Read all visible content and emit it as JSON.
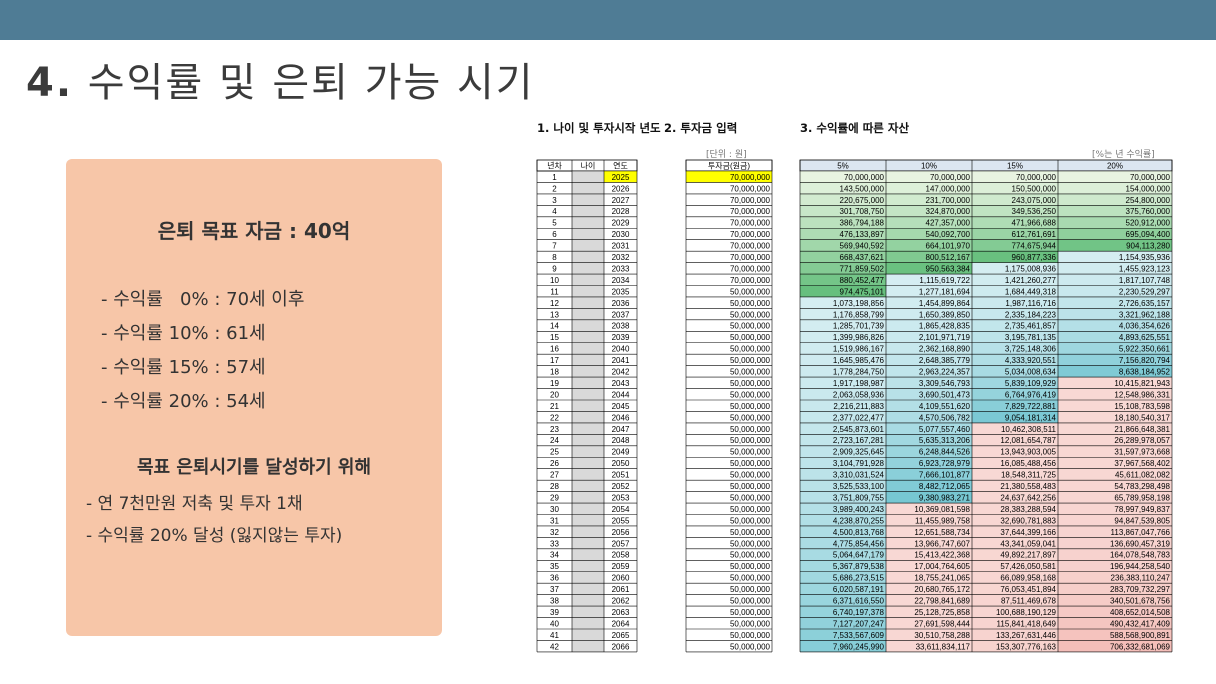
{
  "slide": {
    "title_number": "4.",
    "title_text": "수익률 및 은퇴 가능 시기"
  },
  "panel": {
    "goal": "은퇴 목표 자금 : 40억",
    "retire_items": [
      "- 수익률   0% : 70세 이후",
      "- 수익률 10% : 61세",
      "- 수익률 15% : 57세",
      "- 수익률 20% : 54세"
    ],
    "subheading": "목표 은퇴시기를 달성하기 위해",
    "actions": [
      "- 연 7천만원 저축 및 투자 1채",
      "- 수익률 20% 달성 (잃지않는 투자)"
    ]
  },
  "sheet": {
    "section1": "1. 나이 및 투자시작 년도",
    "section2": "2. 투자금 입력",
    "section3": "3. 수익률에 따른 자산",
    "unit_note": "[단위 : 원]",
    "rate_note": "[%는 년 수익률]",
    "left_headers": [
      "년차",
      "나이",
      "연도"
    ],
    "invest_header": "투자금(원금)",
    "rate_headers": [
      "5%",
      "10%",
      "15%",
      "20%"
    ],
    "colors": {
      "start_year": "#ffff00",
      "age_empty": "#d9d9d9"
    },
    "rows": [
      [
        "1",
        "2025",
        "70,000,000",
        "70,000,000",
        "70,000,000",
        "70,000,000",
        "70,000,000"
      ],
      [
        "2",
        "2026",
        "70,000,000",
        "143,500,000",
        "147,000,000",
        "150,500,000",
        "154,000,000"
      ],
      [
        "3",
        "2027",
        "70,000,000",
        "220,675,000",
        "231,700,000",
        "243,075,000",
        "254,800,000"
      ],
      [
        "4",
        "2028",
        "70,000,000",
        "301,708,750",
        "324,870,000",
        "349,536,250",
        "375,760,000"
      ],
      [
        "5",
        "2029",
        "70,000,000",
        "386,794,188",
        "427,357,000",
        "471,966,688",
        "520,912,000"
      ],
      [
        "6",
        "2030",
        "70,000,000",
        "476,133,897",
        "540,092,700",
        "612,761,691",
        "695,094,400"
      ],
      [
        "7",
        "2031",
        "70,000,000",
        "569,940,592",
        "664,101,970",
        "774,675,944",
        "904,113,280"
      ],
      [
        "8",
        "2032",
        "70,000,000",
        "668,437,621",
        "800,512,167",
        "960,877,336",
        "1,154,935,936"
      ],
      [
        "9",
        "2033",
        "70,000,000",
        "771,859,502",
        "950,563,384",
        "1,175,008,936",
        "1,455,923,123"
      ],
      [
        "10",
        "2034",
        "70,000,000",
        "880,452,477",
        "1,115,619,722",
        "1,421,260,277",
        "1,817,107,748"
      ],
      [
        "11",
        "2035",
        "50,000,000",
        "974,475,101",
        "1,277,181,694",
        "1,684,449,318",
        "2,230,529,297"
      ],
      [
        "12",
        "2036",
        "50,000,000",
        "1,073,198,856",
        "1,454,899,864",
        "1,987,116,716",
        "2,726,635,157"
      ],
      [
        "13",
        "2037",
        "50,000,000",
        "1,176,858,799",
        "1,650,389,850",
        "2,335,184,223",
        "3,321,962,188"
      ],
      [
        "14",
        "2038",
        "50,000,000",
        "1,285,701,739",
        "1,865,428,835",
        "2,735,461,857",
        "4,036,354,626"
      ],
      [
        "15",
        "2039",
        "50,000,000",
        "1,399,986,826",
        "2,101,971,719",
        "3,195,781,135",
        "4,893,625,551"
      ],
      [
        "16",
        "2040",
        "50,000,000",
        "1,519,986,167",
        "2,362,168,890",
        "3,725,148,306",
        "5,922,350,661"
      ],
      [
        "17",
        "2041",
        "50,000,000",
        "1,645,985,476",
        "2,648,385,779",
        "4,333,920,551",
        "7,156,820,794"
      ],
      [
        "18",
        "2042",
        "50,000,000",
        "1,778,284,750",
        "2,963,224,357",
        "5,034,008,634",
        "8,638,184,952"
      ],
      [
        "19",
        "2043",
        "50,000,000",
        "1,917,198,987",
        "3,309,546,793",
        "5,839,109,929",
        "10,415,821,943"
      ],
      [
        "20",
        "2044",
        "50,000,000",
        "2,063,058,936",
        "3,690,501,473",
        "6,764,976,419",
        "12,548,986,331"
      ],
      [
        "21",
        "2045",
        "50,000,000",
        "2,216,211,883",
        "4,109,551,620",
        "7,829,722,881",
        "15,108,783,598"
      ],
      [
        "22",
        "2046",
        "50,000,000",
        "2,377,022,477",
        "4,570,506,782",
        "9,054,181,314",
        "18,180,540,317"
      ],
      [
        "23",
        "2047",
        "50,000,000",
        "2,545,873,601",
        "5,077,557,460",
        "10,462,308,511",
        "21,866,648,381"
      ],
      [
        "24",
        "2048",
        "50,000,000",
        "2,723,167,281",
        "5,635,313,206",
        "12,081,654,787",
        "26,289,978,057"
      ],
      [
        "25",
        "2049",
        "50,000,000",
        "2,909,325,645",
        "6,248,844,526",
        "13,943,903,005",
        "31,597,973,668"
      ],
      [
        "26",
        "2050",
        "50,000,000",
        "3,104,791,928",
        "6,923,728,979",
        "16,085,488,456",
        "37,967,568,402"
      ],
      [
        "27",
        "2051",
        "50,000,000",
        "3,310,031,524",
        "7,666,101,877",
        "18,548,311,725",
        "45,611,082,082"
      ],
      [
        "28",
        "2052",
        "50,000,000",
        "3,525,533,100",
        "8,482,712,065",
        "21,380,558,483",
        "54,783,298,498"
      ],
      [
        "29",
        "2053",
        "50,000,000",
        "3,751,809,755",
        "9,380,983,271",
        "24,637,642,256",
        "65,789,958,198"
      ],
      [
        "30",
        "2054",
        "50,000,000",
        "3,989,400,243",
        "10,369,081,598",
        "28,383,288,594",
        "78,997,949,837"
      ],
      [
        "31",
        "2055",
        "50,000,000",
        "4,238,870,255",
        "11,455,989,758",
        "32,690,781,883",
        "94,847,539,805"
      ],
      [
        "32",
        "2056",
        "50,000,000",
        "4,500,813,768",
        "12,651,588,734",
        "37,644,399,166",
        "113,867,047,766"
      ],
      [
        "33",
        "2057",
        "50,000,000",
        "4,775,854,456",
        "13,966,747,607",
        "43,341,059,041",
        "136,690,457,319"
      ],
      [
        "34",
        "2058",
        "50,000,000",
        "5,064,647,179",
        "15,413,422,368",
        "49,892,217,897",
        "164,078,548,783"
      ],
      [
        "35",
        "2059",
        "50,000,000",
        "5,367,879,538",
        "17,004,764,605",
        "57,426,050,581",
        "196,944,258,540"
      ],
      [
        "36",
        "2060",
        "50,000,000",
        "5,686,273,515",
        "18,755,241,065",
        "66,089,958,168",
        "236,383,110,247"
      ],
      [
        "37",
        "2061",
        "50,000,000",
        "6,020,587,191",
        "20,680,765,172",
        "76,053,451,894",
        "283,709,732,297"
      ],
      [
        "38",
        "2062",
        "50,000,000",
        "6,371,616,550",
        "22,798,841,689",
        "87,511,469,678",
        "340,501,678,756"
      ],
      [
        "39",
        "2063",
        "50,000,000",
        "6,740,197,378",
        "25,128,725,858",
        "100,688,190,129",
        "408,652,014,508"
      ],
      [
        "40",
        "2064",
        "50,000,000",
        "7,127,207,247",
        "27,691,598,444",
        "115,841,418,649",
        "490,432,417,409"
      ],
      [
        "41",
        "2065",
        "50,000,000",
        "7,533,567,609",
        "30,510,758,288",
        "133,267,631,446",
        "588,568,900,891"
      ],
      [
        "42",
        "2066",
        "50,000,000",
        "7,960,245,990",
        "33,611,834,117",
        "153,307,776,163",
        "706,332,681,069"
      ]
    ]
  }
}
